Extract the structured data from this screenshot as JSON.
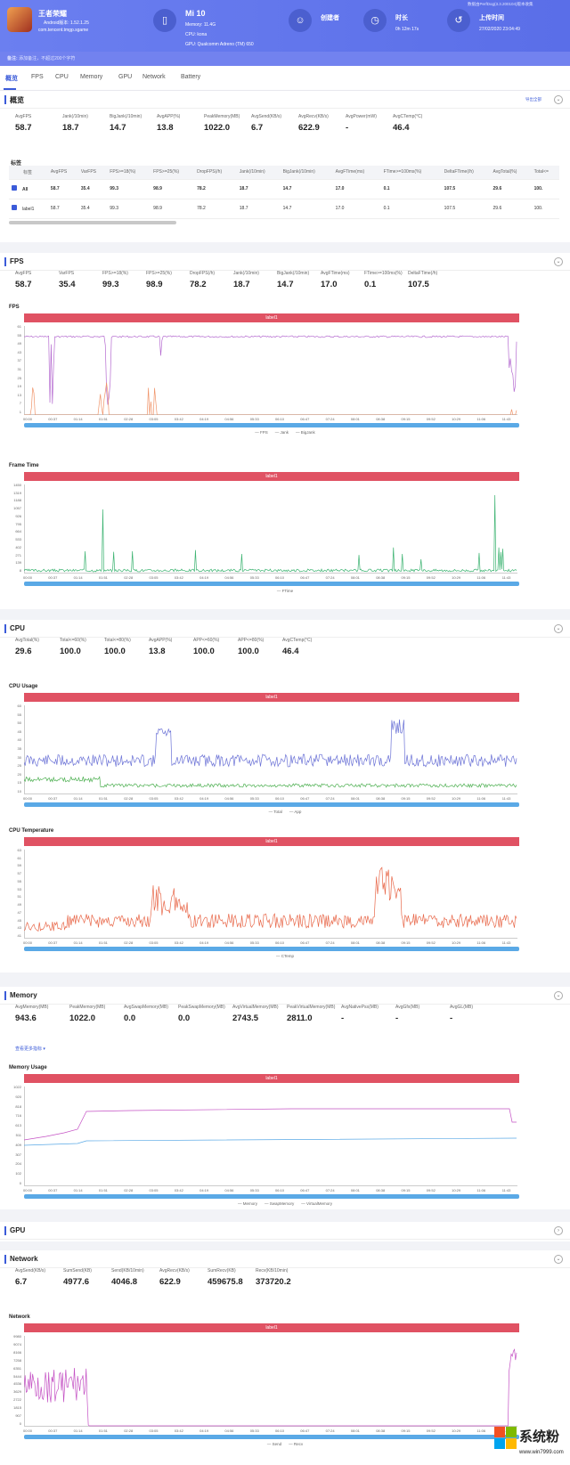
{
  "header": {
    "app_name": "王者荣耀",
    "android_version": "Android版本: 1.52.1.25",
    "package": "com.tencent.tmgp.sgame",
    "device_name": "Mi 10",
    "memory": "Memory: 11.4G",
    "cpu": "CPU: kona",
    "gpu": "GPU: Qualcomm Adreno (TM) 650",
    "creator_label": "创建者",
    "duration_label": "时长",
    "duration_value": "0h 12m 17s",
    "upload_label": "上传时间",
    "upload_value": "27/02/2020 23:04:49",
    "version_note": "数据由PerfDog(3.3.200104)版本收集"
  },
  "note": {
    "label": "备注:",
    "text": "添加备注，不超过200个字符"
  },
  "tabs": [
    "概览",
    "FPS",
    "CPU",
    "Memory",
    "GPU",
    "Network",
    "Battery"
  ],
  "overview": {
    "title": "概览",
    "link": "导出全部",
    "stats": [
      [
        "AvgFPS",
        "58.7"
      ],
      [
        "Jank(/10min)",
        "18.7"
      ],
      [
        "BigJank(/10min)",
        "14.7"
      ],
      [
        "AvgAPP(%)",
        "13.8"
      ],
      [
        "PeakMemory(MB)",
        "1022.0"
      ],
      [
        "AvgSend(KB/s)",
        "6.7"
      ],
      [
        "AvgRecv(KB/s)",
        "622.9"
      ],
      [
        "AvgPower(mW)",
        "-"
      ],
      [
        "AvgCTemp(°C)",
        "46.4"
      ]
    ],
    "table_label": "标签",
    "columns": [
      "标签",
      "AvgFPS",
      "VarFPS",
      "FPS>=18(%)",
      "FPS>=25(%)",
      "DropFPS(/h)",
      "Jank(/10min)",
      "BigJank(/10min)",
      "AvgFTime(ms)",
      "FTime>=100ms(%)",
      "DeltaFTime(/h)",
      "AvgTotal(%)",
      "Total<="
    ],
    "rows": [
      [
        "All",
        "58.7",
        "35.4",
        "99.3",
        "98.9",
        "78.2",
        "18.7",
        "14.7",
        "17.0",
        "0.1",
        "107.5",
        "29.6",
        "100."
      ],
      [
        "label1",
        "58.7",
        "35.4",
        "99.3",
        "98.9",
        "78.2",
        "18.7",
        "14.7",
        "17.0",
        "0.1",
        "107.5",
        "29.6",
        "100."
      ]
    ]
  },
  "fps": {
    "title": "FPS",
    "stats": [
      [
        "AvgFPS",
        "58.7"
      ],
      [
        "VarFPS",
        "35.4"
      ],
      [
        "FPS>=18(%)",
        "99.3"
      ],
      [
        "FPS>=25(%)",
        "98.9"
      ],
      [
        "DropFPS(/h)",
        "78.2"
      ],
      [
        "Jank(/10min)",
        "18.7"
      ],
      [
        "BigJank(/10min)",
        "14.7"
      ],
      [
        "AvgFTime(ms)",
        "17.0"
      ],
      [
        "FTime>=100ms(%)",
        "0.1"
      ],
      [
        "DeltaFTime(/h)",
        "107.5"
      ]
    ],
    "chart1_title": "FPS",
    "chart1_label": "label1",
    "chart1_yticks": [
      "61",
      "55",
      "49",
      "43",
      "37",
      "31",
      "25",
      "19",
      "13",
      "7",
      "1"
    ],
    "chart1_rticks": [
      "3",
      "2",
      "1",
      "0"
    ],
    "chart1_ylabel": "FPS",
    "chart1_rlabel": "Jank",
    "chart1_legend": [
      "FPS",
      "Jank",
      "BigJank"
    ],
    "chart2_title": "Frame Time",
    "chart2_label": "label1",
    "chart2_yticks": [
      "1450",
      "1319",
      "1188",
      "1057",
      "926",
      "795",
      "664",
      "533",
      "402",
      "271",
      "139",
      "8"
    ],
    "chart2_ylabel": "ms",
    "chart2_legend": [
      "FTime"
    ]
  },
  "xticks": [
    "00:00",
    "00:37",
    "01:14",
    "01:51",
    "02:28",
    "03:05",
    "03:42",
    "04:19",
    "04:56",
    "05:33",
    "06:10",
    "06:47",
    "07:24",
    "08:01",
    "08:38",
    "09:15",
    "09:52",
    "10:29",
    "11:06",
    "11:43"
  ],
  "cpu": {
    "title": "CPU",
    "stats": [
      [
        "AvgTotal(%)",
        "29.6"
      ],
      [
        "Total<=60(%)",
        "100.0"
      ],
      [
        "Total<=80(%)",
        "100.0"
      ],
      [
        "AvgAPP(%)",
        "13.8"
      ],
      [
        "APP<=60(%)",
        "100.0"
      ],
      [
        "APP<=80(%)",
        "100.0"
      ],
      [
        "AvgCTemp(°C)",
        "46.4"
      ]
    ],
    "chart1_title": "CPU Usage",
    "chart1_label": "label1",
    "chart1_yticks": [
      "60",
      "55",
      "50",
      "45",
      "40",
      "35",
      "30",
      "25",
      "20",
      "15",
      "10"
    ],
    "chart1_ylabel": "%",
    "chart1_legend": [
      "Total",
      "App"
    ],
    "chart2_title": "CPU Temperature",
    "chart2_label": "label1",
    "chart2_yticks": [
      "63",
      "61",
      "59",
      "57",
      "55",
      "53",
      "51",
      "49",
      "47",
      "45",
      "43",
      "41"
    ],
    "chart2_ylabel": "℃",
    "chart2_legend": [
      "CTemp"
    ]
  },
  "memory": {
    "title": "Memory",
    "stats": [
      [
        "AvgMemory(MB)",
        "943.6"
      ],
      [
        "PeakMemory(MB)",
        "1022.0"
      ],
      [
        "AvgSwapMemory(MB)",
        "0.0"
      ],
      [
        "PeakSwapMemory(MB)",
        "0.0"
      ],
      [
        "AvgVirtualMemory(MB)",
        "2743.5"
      ],
      [
        "PeakVirtualMemory(MB)",
        "2811.0"
      ],
      [
        "AvgNativePss(MB)",
        "-"
      ],
      [
        "AvgGfx(MB)",
        "-"
      ],
      [
        "AvgGL(MB)",
        "-"
      ]
    ],
    "more": "查看更多指标 ▾",
    "chart_title": "Memory Usage",
    "chart_label": "label1",
    "chart_yticks": [
      "1022",
      "920",
      "818",
      "716",
      "613",
      "511",
      "409",
      "307",
      "204",
      "102",
      "0"
    ],
    "chart_ylabel": "MB",
    "chart_legend": [
      "Memory",
      "SwapMemory",
      "VirtualMemory"
    ]
  },
  "gpu": {
    "title": "GPU"
  },
  "network": {
    "title": "Network",
    "stats": [
      [
        "AvgSend(KB/s)",
        "6.7"
      ],
      [
        "SumSend(KB)",
        "4977.6"
      ],
      [
        "Send(KB/10min)",
        "4046.8"
      ],
      [
        "AvgRecv(KB/s)",
        "622.9"
      ],
      [
        "SumRecv(KB)",
        "459675.8"
      ],
      [
        "Recv(KB/10min)",
        "373720.2"
      ]
    ],
    "chart_title": "Network",
    "chart_label": "label1",
    "chart_yticks": [
      "9980",
      "9074",
      "8166",
      "7258",
      "6351",
      "5444",
      "4536",
      "3629",
      "2722",
      "1815",
      "907",
      "0"
    ],
    "chart_ylabel": "KB/s",
    "chart_legend": [
      "Send",
      "Recv"
    ]
  },
  "watermark": {
    "site": "系统粉",
    "url": "www.win7999.com"
  },
  "colors": {
    "header": "#6b7ff0",
    "accent": "#3b5bd9",
    "label_bar": "#e05263",
    "fps": "#b56bd0",
    "jank": "#f0956b",
    "ftime": "#3cb371",
    "cpu_total": "#6b72d6",
    "cpu_app": "#4caf50",
    "ctemp": "#e8684a",
    "memory": "#c451c4",
    "virtual": "#5aa9e6",
    "recv": "#c451c4"
  }
}
